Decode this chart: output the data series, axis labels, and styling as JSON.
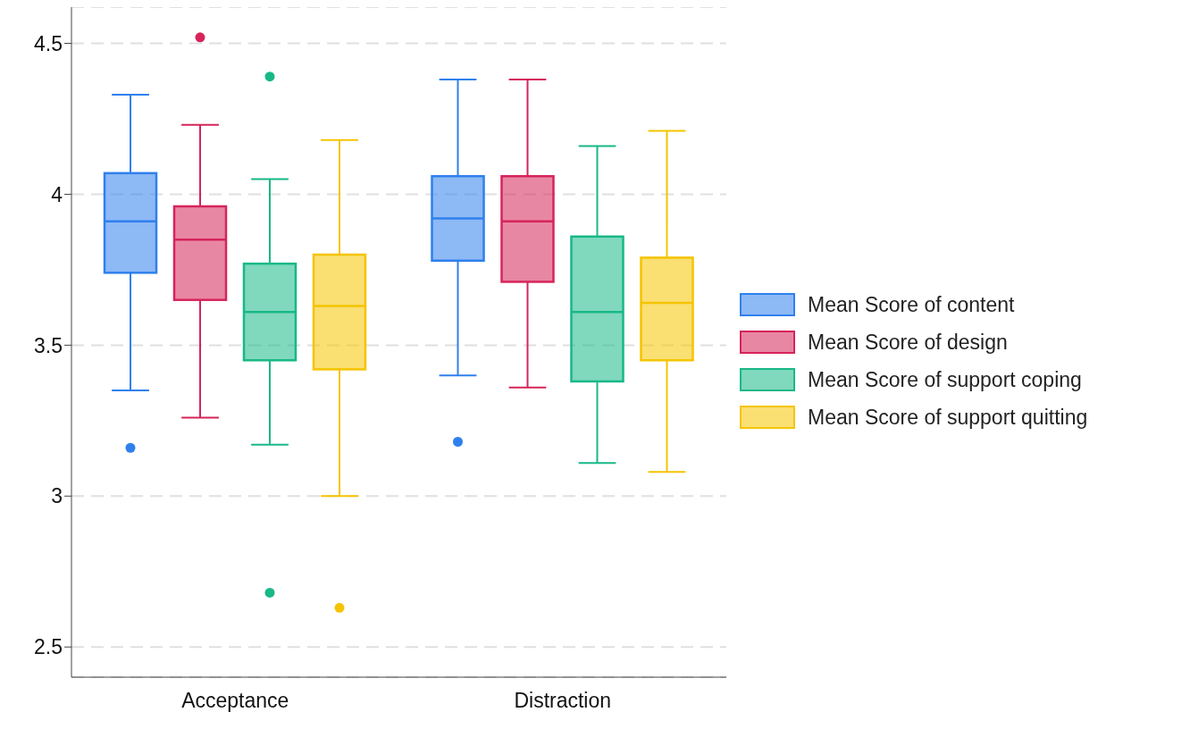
{
  "chart_data": {
    "type": "box",
    "categories": [
      "Acceptance",
      "Distraction"
    ],
    "series": [
      {
        "name": "Mean Score of content",
        "color": "#2f80ed",
        "boxes": [
          {
            "low": 3.35,
            "q1": 3.74,
            "median": 3.91,
            "q3": 4.07,
            "high": 4.33,
            "outliers": [
              3.16
            ]
          },
          {
            "low": 3.4,
            "q1": 3.78,
            "median": 3.92,
            "q3": 4.06,
            "high": 4.38,
            "outliers": [
              3.18
            ]
          }
        ]
      },
      {
        "name": "Mean Score of design",
        "color": "#d6245a",
        "boxes": [
          {
            "low": 3.26,
            "q1": 3.65,
            "median": 3.85,
            "q3": 3.96,
            "high": 4.23,
            "outliers": [
              4.52
            ]
          },
          {
            "low": 3.36,
            "q1": 3.71,
            "median": 3.91,
            "q3": 4.06,
            "high": 4.38
          }
        ]
      },
      {
        "name": "Mean Score of support coping",
        "color": "#18b887",
        "boxes": [
          {
            "low": 3.17,
            "q1": 3.45,
            "median": 3.61,
            "q3": 3.77,
            "high": 4.05,
            "outliers": [
              4.39,
              2.68
            ]
          },
          {
            "low": 3.11,
            "q1": 3.38,
            "median": 3.61,
            "q3": 3.86,
            "high": 4.16
          }
        ]
      },
      {
        "name": "Mean Score of support quitting",
        "color": "#f5c400",
        "boxes": [
          {
            "low": 3.0,
            "q1": 3.42,
            "median": 3.63,
            "q3": 3.8,
            "high": 4.18,
            "outliers": [
              2.63
            ]
          },
          {
            "low": 3.08,
            "q1": 3.45,
            "median": 3.64,
            "q3": 3.79,
            "high": 4.21
          }
        ]
      }
    ],
    "ylim": [
      2.4,
      4.62
    ],
    "yticks": [
      2.5,
      3,
      3.5,
      4,
      4.5
    ],
    "grid": "y",
    "legend": "right"
  }
}
